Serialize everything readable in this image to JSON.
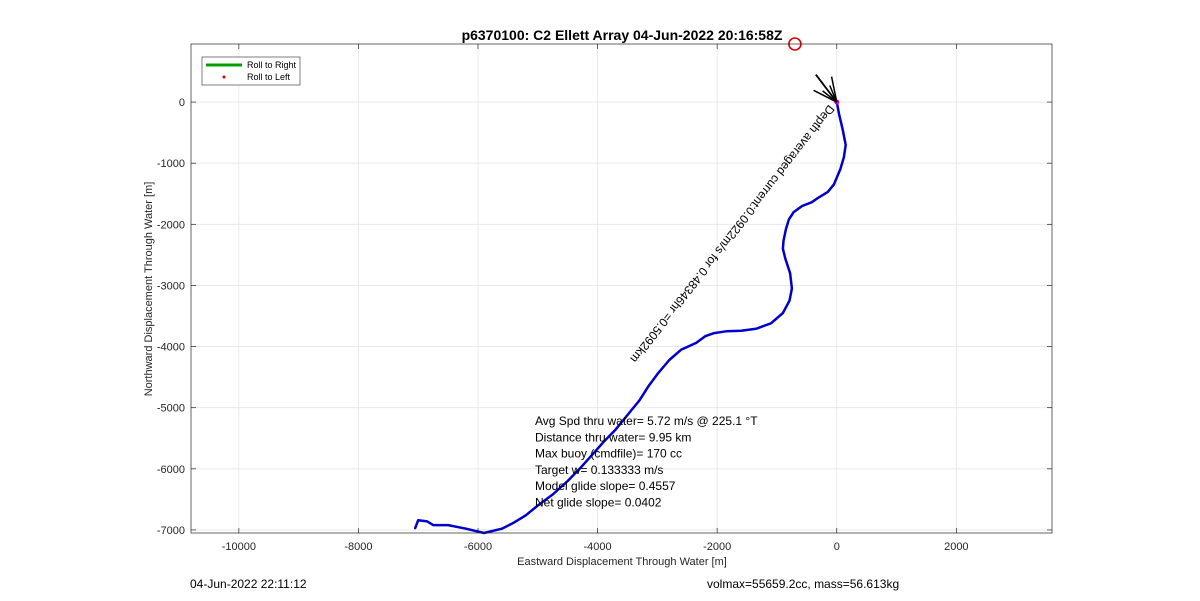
{
  "chart_data": {
    "type": "line",
    "title": "p6370100: C2 Ellett Array 04-Jun-2022 20:16:58Z",
    "xlabel": "Eastward Displacement Through Water [m]",
    "ylabel": "Northward Displacement Through Water [m]",
    "xlim": [
      -10800,
      3600
    ],
    "ylim": [
      -7050,
      950
    ],
    "xticks": [
      -10000,
      -8000,
      -6000,
      -4000,
      -2000,
      0,
      2000
    ],
    "yticks": [
      -7000,
      -6000,
      -5000,
      -4000,
      -3000,
      -2000,
      -1000,
      0
    ],
    "xtick_labels": [
      "-10000",
      "-8000",
      "-6000",
      "-4000",
      "-2000",
      "0",
      "2000"
    ],
    "ytick_labels": [
      "-7000",
      "-6000",
      "-5000",
      "-4000",
      "-3000",
      "-2000",
      "-1000",
      "0"
    ],
    "grid": true,
    "legend": {
      "placement": "top-left",
      "entries": [
        {
          "label": "Roll to Right",
          "color": "#00a000",
          "style": "line"
        },
        {
          "label": "Roll to Left",
          "color": "#e00000",
          "style": "dot"
        }
      ]
    },
    "series": [
      {
        "color": "#0000cc",
        "x": [
          0,
          40,
          100,
          150,
          120,
          60,
          -50,
          -150,
          -300,
          -420,
          -580,
          -720,
          -800,
          -850,
          -890,
          -900,
          -860,
          -780,
          -750,
          -790,
          -900,
          -1100,
          -1350,
          -1600,
          -1850,
          -2050,
          -2200,
          -2350,
          -2600,
          -2800,
          -3000,
          -3150,
          -3300,
          -3500,
          -3700,
          -3900,
          -4100,
          -4300,
          -4500,
          -4750,
          -5000,
          -5200,
          -5400,
          -5600,
          -5900,
          -6200,
          -6500,
          -6750,
          -6850,
          -7000,
          -7050
        ],
        "y": [
          0,
          -200,
          -450,
          -700,
          -900,
          -1100,
          -1350,
          -1470,
          -1560,
          -1640,
          -1700,
          -1800,
          -1920,
          -2080,
          -2270,
          -2400,
          -2560,
          -2800,
          -3050,
          -3250,
          -3450,
          -3620,
          -3710,
          -3740,
          -3750,
          -3780,
          -3830,
          -3940,
          -4050,
          -4220,
          -4450,
          -4650,
          -4880,
          -5120,
          -5360,
          -5560,
          -5780,
          -6000,
          -6200,
          -6420,
          -6600,
          -6760,
          -6880,
          -6980,
          -7050,
          -6980,
          -6920,
          -6920,
          -6860,
          -6840,
          -6970
        ]
      }
    ],
    "start_marker": {
      "x": -700,
      "y": 950,
      "color": "#e00000"
    },
    "arrow": {
      "x1": 0,
      "y1": 0,
      "x2": -350,
      "y2": 450
    },
    "arrow_label": "Depth averaged current:0.0922m/s for 0.48346hr =0.5092km",
    "annotations": [
      "Avg Spd thru water=  5.72 m/s @ 225.1 °T",
      "Distance thru water=  9.95 km",
      "Max buoy (cmdfile)= 170 cc",
      "Target w= 0.133333 m/s",
      "Model glide slope= 0.4557",
      "Net glide slope= 0.0402"
    ]
  },
  "footer": {
    "left": "04-Jun-2022 22:11:12",
    "right": "volmax=55659.2cc, mass=56.613kg"
  }
}
